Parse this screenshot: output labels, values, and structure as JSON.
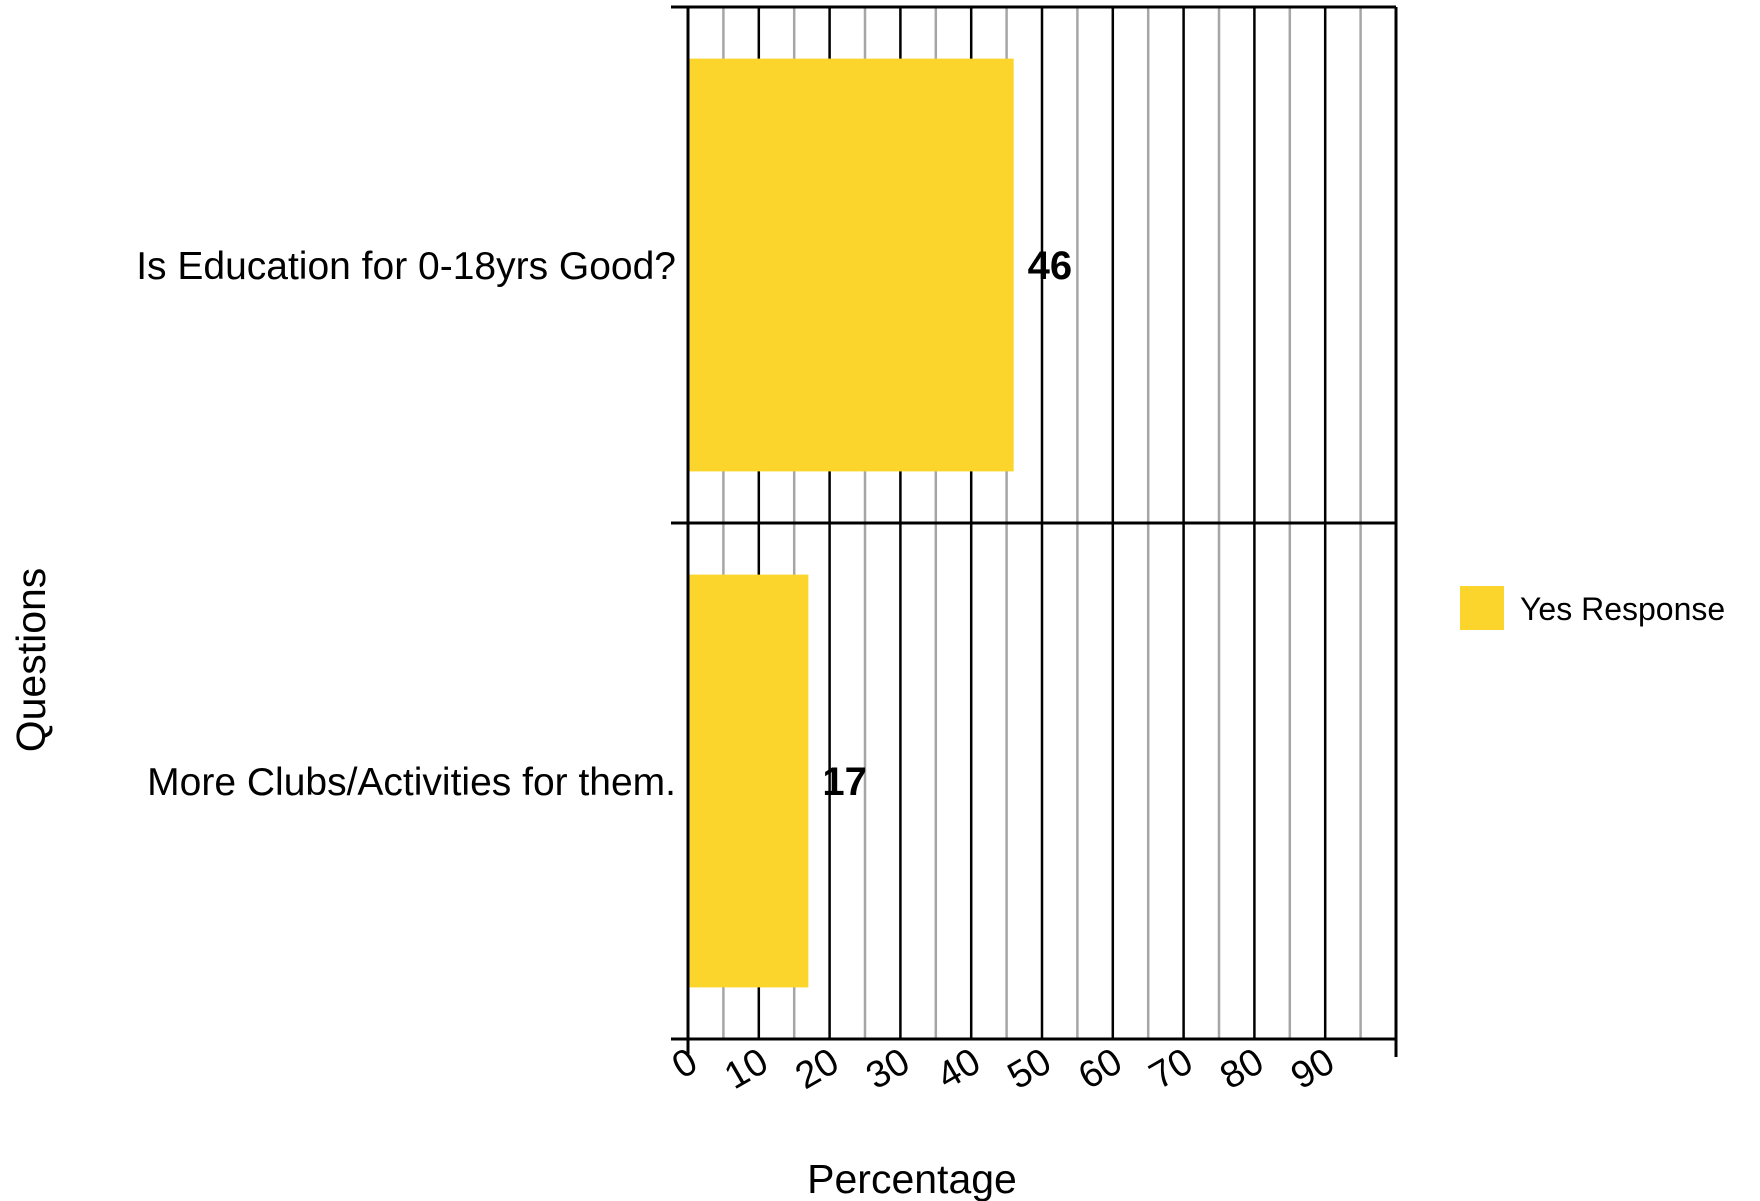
{
  "chart_data": {
    "type": "bar",
    "orientation": "horizontal",
    "categories": [
      "Is Education for 0-18yrs Good?",
      "More Clubs/Activities for them."
    ],
    "series": [
      {
        "name": "Yes Response",
        "values": [
          46,
          17
        ],
        "color": "#FBD52B"
      }
    ],
    "data_labels": [
      "46",
      "17"
    ],
    "xlabel": "Percentage",
    "ylabel": "Questions",
    "xlim": [
      0,
      100
    ],
    "x_ticks": [
      0,
      10,
      20,
      30,
      40,
      50,
      60,
      70,
      80,
      90
    ],
    "x_tick_labels": [
      "0",
      "10",
      "20",
      "30",
      "40",
      "50",
      "60",
      "70",
      "80",
      "90"
    ],
    "grid": true,
    "legend": "right"
  }
}
